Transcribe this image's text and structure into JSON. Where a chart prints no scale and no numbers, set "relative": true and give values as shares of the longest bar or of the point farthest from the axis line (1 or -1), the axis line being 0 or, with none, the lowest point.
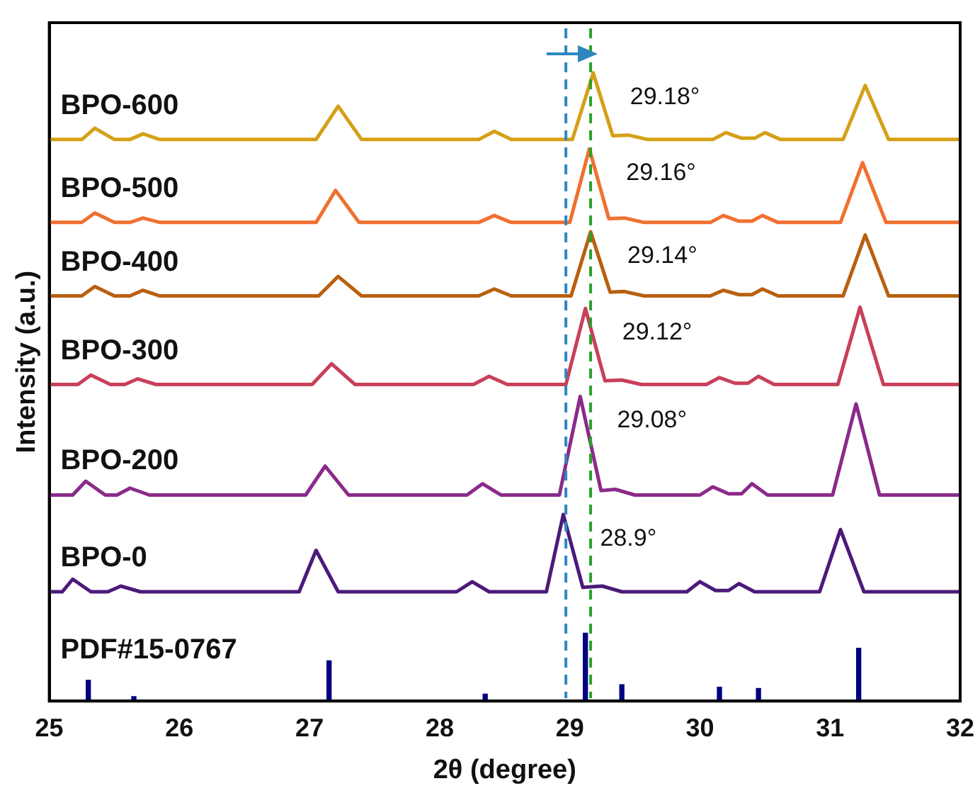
{
  "chart_data": {
    "type": "line",
    "xlabel": "2θ (degree)",
    "ylabel": "Intensity (a.u.)",
    "relative": true,
    "xlim": [
      25,
      32
    ],
    "xticks": [
      25,
      26,
      27,
      28,
      29,
      30,
      31,
      32
    ],
    "grid": false,
    "legend": false,
    "line_style": "solid",
    "series": [
      {
        "name": "BPO-600",
        "color": "#d4a017",
        "x": [
          25,
          25.25,
          25.35,
          25.5,
          25.62,
          25.72,
          25.85,
          27.05,
          27.22,
          27.4,
          28.3,
          28.42,
          28.55,
          29.02,
          29.18,
          29.33,
          29.45,
          29.6,
          30.1,
          30.2,
          30.32,
          30.42,
          30.5,
          30.62,
          31.1,
          31.27,
          31.45,
          32
        ],
        "values": [
          0.894,
          0.894,
          0.912,
          0.894,
          0.894,
          0.903,
          0.894,
          0.894,
          0.947,
          0.894,
          0.894,
          0.907,
          0.894,
          0.894,
          1,
          0.9,
          0.901,
          0.894,
          0.894,
          0.905,
          0.896,
          0.896,
          0.905,
          0.894,
          0.894,
          0.98,
          0.894,
          0.894
        ]
      },
      {
        "name": "BPO-500",
        "color": "#f07030",
        "x": [
          25,
          25.25,
          25.35,
          25.5,
          25.62,
          25.72,
          25.85,
          27.05,
          27.2,
          27.38,
          28.3,
          28.42,
          28.55,
          29.0,
          29.15,
          29.3,
          29.42,
          29.57,
          30.08,
          30.18,
          30.3,
          30.4,
          30.48,
          30.6,
          31.08,
          31.25,
          31.43,
          32
        ],
        "values": [
          0.762,
          0.762,
          0.777,
          0.762,
          0.762,
          0.769,
          0.762,
          0.762,
          0.813,
          0.762,
          0.762,
          0.773,
          0.762,
          0.762,
          0.879,
          0.768,
          0.769,
          0.762,
          0.762,
          0.773,
          0.764,
          0.764,
          0.773,
          0.762,
          0.762,
          0.857,
          0.762,
          0.762
        ]
      },
      {
        "name": "BPO-400",
        "color": "#b8600f",
        "x": [
          25,
          25.25,
          25.35,
          25.5,
          25.62,
          25.72,
          25.85,
          27.07,
          27.22,
          27.4,
          28.3,
          28.42,
          28.55,
          29.01,
          29.16,
          29.31,
          29.42,
          29.57,
          30.08,
          30.18,
          30.3,
          30.4,
          30.48,
          30.6,
          31.1,
          31.27,
          31.45,
          32
        ],
        "values": [
          0.645,
          0.645,
          0.66,
          0.645,
          0.645,
          0.654,
          0.645,
          0.645,
          0.676,
          0.645,
          0.645,
          0.656,
          0.645,
          0.645,
          0.747,
          0.651,
          0.652,
          0.645,
          0.645,
          0.654,
          0.647,
          0.647,
          0.656,
          0.645,
          0.645,
          0.742,
          0.645,
          0.645
        ]
      },
      {
        "name": "BPO-300",
        "color": "#c8405a",
        "x": [
          25,
          25.22,
          25.32,
          25.47,
          25.58,
          25.68,
          25.82,
          27.02,
          27.17,
          27.35,
          28.26,
          28.38,
          28.52,
          28.97,
          29.12,
          29.27,
          29.4,
          29.55,
          30.05,
          30.15,
          30.27,
          30.37,
          30.45,
          30.57,
          31.06,
          31.23,
          31.41,
          32
        ],
        "values": [
          0.504,
          0.504,
          0.519,
          0.504,
          0.504,
          0.513,
          0.504,
          0.504,
          0.537,
          0.504,
          0.504,
          0.517,
          0.504,
          0.504,
          0.625,
          0.51,
          0.511,
          0.504,
          0.504,
          0.515,
          0.506,
          0.506,
          0.517,
          0.504,
          0.504,
          0.627,
          0.504,
          0.504
        ]
      },
      {
        "name": "BPO-200",
        "color": "#8b2a8a",
        "x": [
          25,
          25.18,
          25.28,
          25.43,
          25.52,
          25.62,
          25.77,
          26.97,
          27.12,
          27.3,
          28.21,
          28.33,
          28.47,
          28.92,
          29.08,
          29.24,
          29.35,
          29.5,
          30.0,
          30.1,
          30.22,
          30.32,
          30.4,
          30.52,
          31.02,
          31.2,
          31.38,
          32
        ],
        "values": [
          0.328,
          0.328,
          0.35,
          0.328,
          0.328,
          0.339,
          0.328,
          0.328,
          0.374,
          0.328,
          0.328,
          0.346,
          0.328,
          0.328,
          0.485,
          0.335,
          0.337,
          0.328,
          0.328,
          0.341,
          0.33,
          0.33,
          0.346,
          0.328,
          0.328,
          0.473,
          0.328,
          0.328
        ]
      },
      {
        "name": "BPO-0",
        "color": "#4b1a7a",
        "x": [
          25,
          25.1,
          25.18,
          25.32,
          25.45,
          25.55,
          25.7,
          26.92,
          27.05,
          27.22,
          28.13,
          28.25,
          28.38,
          28.82,
          28.95,
          29.1,
          29.25,
          29.4,
          29.9,
          30.0,
          30.12,
          30.22,
          30.3,
          30.42,
          30.92,
          31.08,
          31.26,
          32
        ],
        "values": [
          0.174,
          0.174,
          0.194,
          0.174,
          0.174,
          0.183,
          0.174,
          0.174,
          0.24,
          0.174,
          0.174,
          0.19,
          0.174,
          0.174,
          0.297,
          0.181,
          0.183,
          0.174,
          0.174,
          0.19,
          0.176,
          0.176,
          0.187,
          0.174,
          0.174,
          0.273,
          0.174,
          0.174
        ]
      },
      {
        "name": "PDF#15-0767",
        "type": "bar",
        "color": "#000080",
        "x": [
          25.3,
          25.65,
          27.15,
          28.35,
          29.12,
          29.4,
          30.15,
          30.45,
          31.22
        ],
        "values": [
          0.033,
          0.007,
          0.064,
          0.011,
          0.108,
          0.026,
          0.022,
          0.02,
          0.084
        ]
      }
    ],
    "ref_lines": [
      {
        "axis": "x",
        "value": 28.97,
        "color": "#2e86c1",
        "line_style": "dashed"
      },
      {
        "axis": "x",
        "value": 29.16,
        "color": "#2ca02c",
        "line_style": "dashed"
      }
    ],
    "annotations": [
      {
        "text": "29.18°",
        "x": 29.18,
        "y": 1
      },
      {
        "text": "29.16°",
        "x": 29.15,
        "y": 0.879
      },
      {
        "text": "29.14°",
        "x": 29.16,
        "y": 0.747
      },
      {
        "text": "29.12°",
        "x": 29.12,
        "y": 0.625
      },
      {
        "text": "29.08°",
        "x": 29.08,
        "y": 0.485
      },
      {
        "text": "28.9°",
        "x": 28.95,
        "y": 0.297
      }
    ]
  }
}
